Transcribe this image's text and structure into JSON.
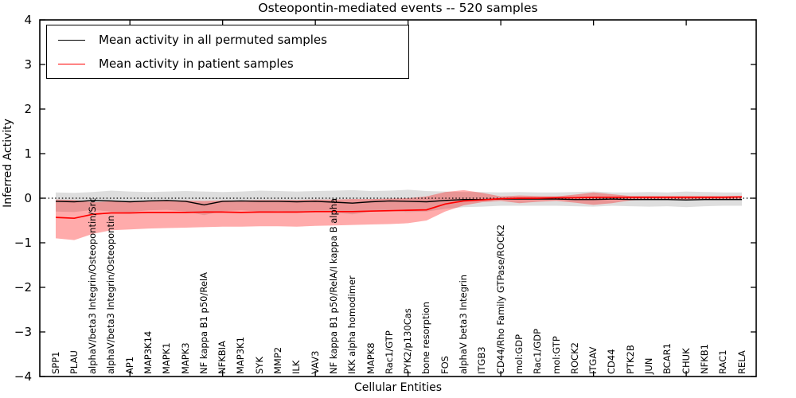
{
  "chart_data": {
    "type": "line",
    "title": "Osteopontin-mediated events -- 520 samples",
    "xlabel": "Cellular Entities",
    "ylabel": "Inferred Activity",
    "ylim": [
      -4,
      4
    ],
    "grid": false,
    "zero_line": "dotted",
    "legend_position": "upper left",
    "ytick_values": [
      4,
      3,
      2,
      1,
      0,
      -1,
      -2,
      -3,
      -4
    ],
    "ytick_labels": [
      "4",
      "3",
      "2",
      "1",
      "0",
      "−1",
      "−2",
      "−3",
      "−4"
    ],
    "xtick_major_indices": [
      4,
      9,
      14,
      19,
      24,
      29,
      34
    ],
    "categories": [
      "SPP1",
      "PLAU",
      "alphaV/beta3 Integrin/Osteopontin/Src",
      "alphaV/beta3 Integrin/Osteopontin",
      "AP1",
      "MAP3K14",
      "MAPK1",
      "MAPK3",
      "NF kappa B1 p50/RelA",
      "NFKBIA",
      "MAP3K1",
      "SYK",
      "MMP2",
      "ILK",
      "VAV3",
      "NF kappa B1 p50/RelA/I kappa B alpha",
      "IKK alpha homodimer",
      "MAPK8",
      "Rac1/GTP",
      "PYK2/p130Cas",
      "bone resorption",
      "FOS",
      "alphaV beta3 Integrin",
      "ITGB3",
      "CD44/Rho Family GTPase/ROCK2",
      "mol:GDP",
      "Rac1/GDP",
      "mol:GTP",
      "ROCK2",
      "ITGAV",
      "CD44",
      "PTK2B",
      "JUN",
      "BCAR1",
      "CHUK",
      "NFKB1",
      "RAC1",
      "RELA"
    ],
    "legend": [
      {
        "label": "Mean activity in all permuted samples",
        "color": "#000000"
      },
      {
        "label": "Mean activity in patient samples",
        "color": "#ff0000"
      }
    ],
    "series": [
      {
        "name": "permuted_mean",
        "color": "#000000",
        "values": [
          -0.07,
          -0.08,
          -0.05,
          -0.06,
          -0.08,
          -0.06,
          -0.05,
          -0.07,
          -0.15,
          -0.07,
          -0.06,
          -0.07,
          -0.07,
          -0.08,
          -0.07,
          -0.09,
          -0.11,
          -0.08,
          -0.06,
          -0.07,
          -0.08,
          -0.05,
          -0.03,
          -0.03,
          -0.02,
          -0.02,
          -0.02,
          -0.02,
          -0.03,
          -0.03,
          -0.02,
          -0.03,
          -0.03,
          -0.03,
          -0.04,
          -0.03,
          -0.03,
          -0.03
        ]
      },
      {
        "name": "patient_mean",
        "color": "#ff0000",
        "values": [
          -0.43,
          -0.45,
          -0.36,
          -0.33,
          -0.33,
          -0.32,
          -0.32,
          -0.32,
          -0.31,
          -0.31,
          -0.32,
          -0.31,
          -0.31,
          -0.31,
          -0.3,
          -0.3,
          -0.3,
          -0.29,
          -0.28,
          -0.27,
          -0.26,
          -0.13,
          -0.06,
          -0.04,
          -0.01,
          0.0,
          0.0,
          0.01,
          0.01,
          0.02,
          0.02,
          0.02,
          0.02,
          0.02,
          0.02,
          0.02,
          0.02,
          0.03
        ]
      }
    ],
    "bands": [
      {
        "name": "permuted_band",
        "color": "#000000",
        "opacity": 0.13,
        "upper": [
          0.13,
          0.12,
          0.14,
          0.17,
          0.15,
          0.14,
          0.15,
          0.16,
          0.15,
          0.14,
          0.15,
          0.17,
          0.16,
          0.15,
          0.16,
          0.17,
          0.18,
          0.16,
          0.17,
          0.19,
          0.16,
          0.15,
          0.14,
          0.14,
          0.13,
          0.14,
          0.13,
          0.13,
          0.14,
          0.15,
          0.13,
          0.13,
          0.14,
          0.13,
          0.15,
          0.14,
          0.13,
          0.13
        ],
        "lower": [
          -0.3,
          -0.31,
          -0.26,
          -0.3,
          -0.31,
          -0.27,
          -0.26,
          -0.3,
          -0.38,
          -0.29,
          -0.27,
          -0.3,
          -0.29,
          -0.3,
          -0.29,
          -0.32,
          -0.36,
          -0.3,
          -0.28,
          -0.31,
          -0.3,
          -0.24,
          -0.2,
          -0.19,
          -0.17,
          -0.17,
          -0.17,
          -0.17,
          -0.18,
          -0.19,
          -0.17,
          -0.18,
          -0.19,
          -0.18,
          -0.2,
          -0.18,
          -0.17,
          -0.17
        ]
      },
      {
        "name": "patient_band",
        "color": "#ff0000",
        "opacity": 0.33,
        "upper": [
          -0.03,
          -0.04,
          -0.09,
          -0.07,
          -0.06,
          -0.06,
          -0.05,
          -0.05,
          -0.06,
          -0.05,
          -0.05,
          -0.04,
          -0.04,
          -0.04,
          -0.03,
          -0.03,
          -0.02,
          -0.02,
          -0.01,
          0.0,
          0.04,
          0.14,
          0.18,
          0.12,
          0.04,
          0.06,
          0.05,
          0.04,
          0.08,
          0.13,
          0.09,
          0.05,
          0.05,
          0.05,
          0.05,
          0.05,
          0.05,
          0.05
        ],
        "lower": [
          -0.9,
          -0.94,
          -0.8,
          -0.72,
          -0.7,
          -0.68,
          -0.67,
          -0.66,
          -0.65,
          -0.64,
          -0.64,
          -0.63,
          -0.63,
          -0.64,
          -0.62,
          -0.61,
          -0.6,
          -0.59,
          -0.58,
          -0.56,
          -0.5,
          -0.3,
          -0.16,
          -0.09,
          -0.06,
          -0.11,
          -0.08,
          -0.06,
          -0.1,
          -0.15,
          -0.11,
          -0.05,
          -0.03,
          -0.02,
          -0.03,
          -0.02,
          -0.02,
          -0.01
        ]
      }
    ]
  }
}
